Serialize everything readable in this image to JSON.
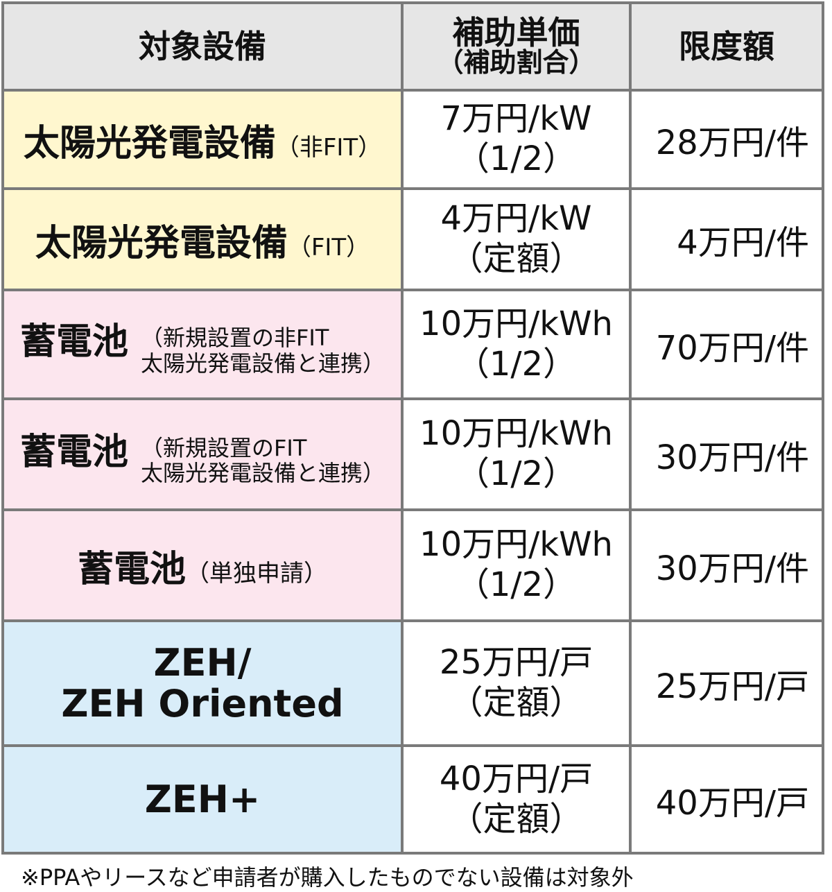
{
  "header": {
    "col1": "対象設備",
    "col2": "補助単価",
    "col2_sub": "（補助割合）",
    "col3": "限度額"
  },
  "rows": [
    {
      "item": "太陽光発電設備",
      "note": "（非FIT）",
      "price": "7万円/kW",
      "ratio": "（1/2）",
      "limit": "28万円/件",
      "color": "#fff7cf"
    },
    {
      "item": "太陽光発電設備",
      "note": "（FIT）",
      "price": "4万円/kW",
      "ratio": "（定額）",
      "limit": "4万円/件",
      "color": "#fff7cf"
    },
    {
      "item": "蓄電池",
      "note": "（新規設置の非FIT",
      "note2": "太陽光発電設備と連携）",
      "price": "10万円/kWh",
      "ratio": "（1/2）",
      "limit": "70万円/件",
      "color": "#fce6ee"
    },
    {
      "item": "蓄電池",
      "note": "（新規設置のFIT",
      "note2": "太陽光発電設備と連携）",
      "price": "10万円/kWh",
      "ratio": "（1/2）",
      "limit": "30万円/件",
      "color": "#fce6ee"
    },
    {
      "item": "蓄電池",
      "note": "（単独申請）",
      "price": "10万円/kWh",
      "ratio": "（1/2）",
      "limit": "30万円/件",
      "color": "#fce6ee"
    },
    {
      "item": "ZEH/",
      "item2": "ZEH Oriented",
      "price": "25万円/戸",
      "ratio": "（定額）",
      "limit": "25万円/戸",
      "color": "#d9edf9"
    },
    {
      "item": "ZEH+",
      "price": "40万円/戸",
      "ratio": "（定額）",
      "limit": "40万円/戸",
      "color": "#d9edf9"
    }
  ],
  "footnote": "※PPAやリースなど申請者が購入したものでない設備は対象外"
}
